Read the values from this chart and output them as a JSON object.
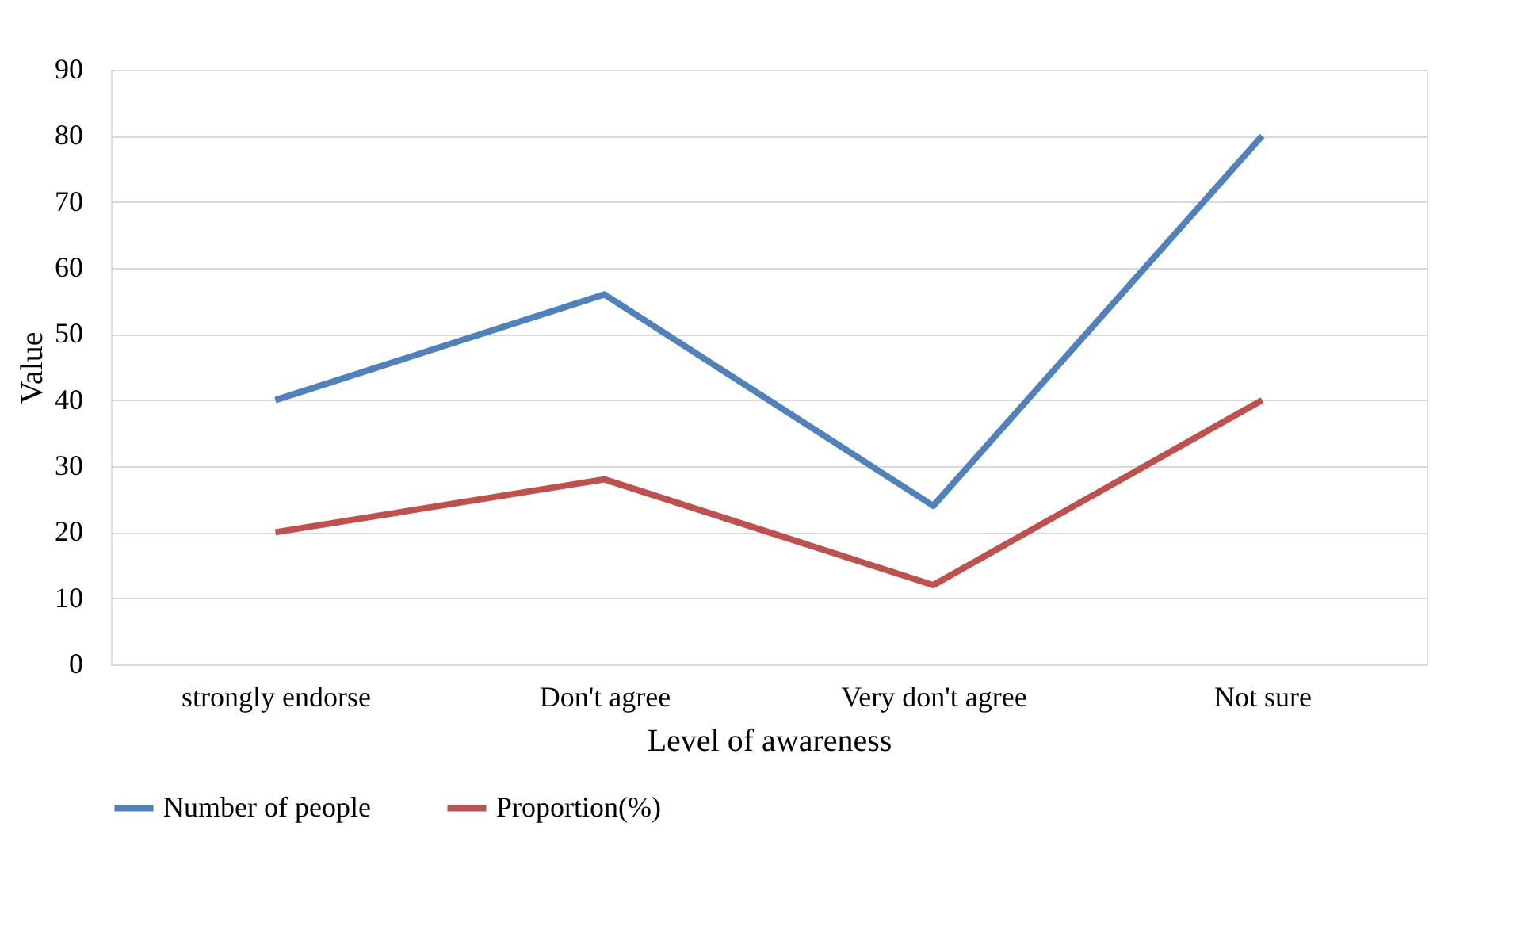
{
  "chart_data": {
    "type": "line",
    "xlabel": "Level of awareness",
    "ylabel": "Value",
    "categories": [
      "strongly endorse",
      "Don't agree",
      "Very don't agree",
      "Not sure"
    ],
    "series": [
      {
        "name": "Number of people",
        "color": "#4f81bd",
        "values": [
          40,
          56,
          24,
          80
        ]
      },
      {
        "name": "Proportion(%)",
        "color": "#c0504d",
        "values": [
          20,
          28,
          12,
          40
        ]
      }
    ],
    "ylim": [
      0,
      90
    ],
    "yticks": [
      0,
      10,
      20,
      30,
      40,
      50,
      60,
      70,
      80,
      90
    ],
    "grid": "y",
    "legend": "bottom",
    "marker": "none",
    "line_style": "solid"
  }
}
